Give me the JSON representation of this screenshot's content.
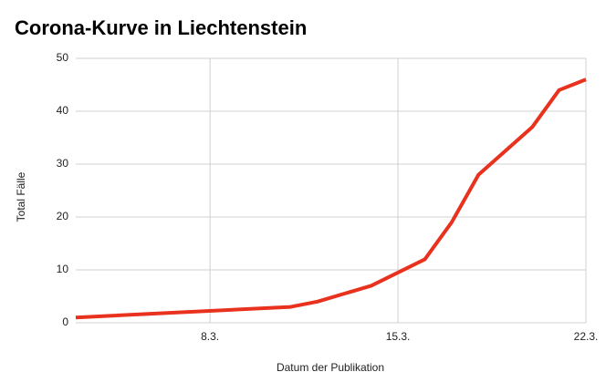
{
  "chart_data": {
    "type": "line",
    "title": "Corona-Kurve in Liechtenstein",
    "x_label": "Datum der Publikation",
    "y_label": "Total Fälle",
    "x": [
      3,
      11,
      12,
      14,
      15,
      16,
      17,
      18,
      19,
      20,
      21,
      22
    ],
    "series": [
      {
        "name": "Total Fälle",
        "color": "#e8321e",
        "values": [
          1,
          3,
          4,
          7,
          9.5,
          12,
          19,
          28,
          32.5,
          37,
          44,
          46
        ]
      }
    ],
    "xlim": [
      3,
      22
    ],
    "xticks": [
      {
        "value": 8,
        "label": "8.3."
      },
      {
        "value": 15,
        "label": "15.3."
      },
      {
        "value": 22,
        "label": "22.3."
      }
    ],
    "ylim": [
      0,
      50
    ],
    "yticks": [
      0,
      10,
      20,
      30,
      40,
      50
    ],
    "grid": true
  }
}
